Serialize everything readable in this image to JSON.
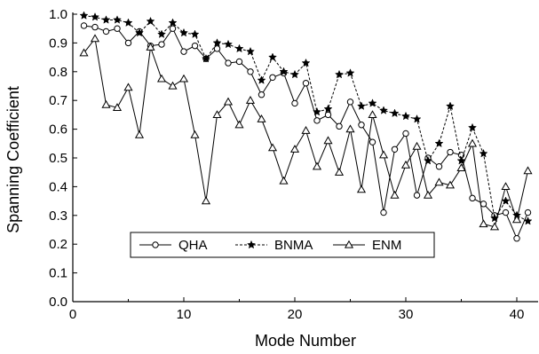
{
  "chart_data": {
    "type": "line",
    "title": "",
    "xlabel": "Mode Number",
    "ylabel": "Spanning Coefficient",
    "xlim": [
      0,
      42
    ],
    "ylim": [
      0.0,
      1.0
    ],
    "xticks": [
      0,
      10,
      20,
      30,
      40
    ],
    "yticks": [
      0.0,
      0.1,
      0.2,
      0.3,
      0.4,
      0.5,
      0.6,
      0.7,
      0.8,
      0.9,
      1.0
    ],
    "xtick_labels": [
      "0",
      "10",
      "20",
      "30",
      "40"
    ],
    "ytick_labels": [
      "0.0",
      "0.1",
      "0.2",
      "0.3",
      "0.4",
      "0.5",
      "0.6",
      "0.7",
      "0.8",
      "0.9",
      "1.0"
    ],
    "grid": false,
    "legend_position": "lower-center",
    "x": [
      1,
      2,
      3,
      4,
      5,
      6,
      7,
      8,
      9,
      10,
      11,
      12,
      13,
      14,
      15,
      16,
      17,
      18,
      19,
      20,
      21,
      22,
      23,
      24,
      25,
      26,
      27,
      28,
      29,
      30,
      31,
      32,
      33,
      34,
      35,
      36,
      37,
      38,
      39,
      40,
      41
    ],
    "series": [
      {
        "name": "QHA",
        "marker": "circle",
        "line_style": "solid",
        "values": [
          0.96,
          0.955,
          0.94,
          0.95,
          0.9,
          0.94,
          0.89,
          0.895,
          0.95,
          0.87,
          0.89,
          0.845,
          0.88,
          0.83,
          0.835,
          0.8,
          0.72,
          0.78,
          0.795,
          0.69,
          0.76,
          0.63,
          0.65,
          0.61,
          0.695,
          0.615,
          0.555,
          0.31,
          0.53,
          0.585,
          0.37,
          0.5,
          0.47,
          0.52,
          0.51,
          0.36,
          0.34,
          0.3,
          0.31,
          0.22,
          0.31
        ]
      },
      {
        "name": "BNMA",
        "marker": "star",
        "line_style": "dashed",
        "values": [
          0.995,
          0.99,
          0.98,
          0.98,
          0.97,
          0.935,
          0.975,
          0.93,
          0.97,
          0.935,
          0.93,
          0.845,
          0.9,
          0.895,
          0.88,
          0.87,
          0.77,
          0.85,
          0.8,
          0.79,
          0.83,
          0.66,
          0.67,
          0.79,
          0.795,
          0.68,
          0.69,
          0.665,
          0.655,
          0.645,
          0.635,
          0.49,
          0.55,
          0.68,
          0.49,
          0.605,
          0.515,
          0.29,
          0.35,
          0.3,
          0.28
        ]
      },
      {
        "name": "ENM",
        "marker": "triangle",
        "line_style": "solid",
        "values": [
          0.865,
          0.915,
          0.685,
          0.675,
          0.745,
          0.58,
          0.885,
          0.775,
          0.75,
          0.775,
          0.58,
          0.35,
          0.65,
          0.695,
          0.615,
          0.7,
          0.635,
          0.535,
          0.42,
          0.53,
          0.595,
          0.47,
          0.56,
          0.45,
          0.6,
          0.39,
          0.65,
          0.51,
          0.37,
          0.475,
          0.54,
          0.37,
          0.415,
          0.405,
          0.465,
          0.55,
          0.27,
          0.26,
          0.4,
          0.285,
          0.455
        ]
      }
    ]
  }
}
